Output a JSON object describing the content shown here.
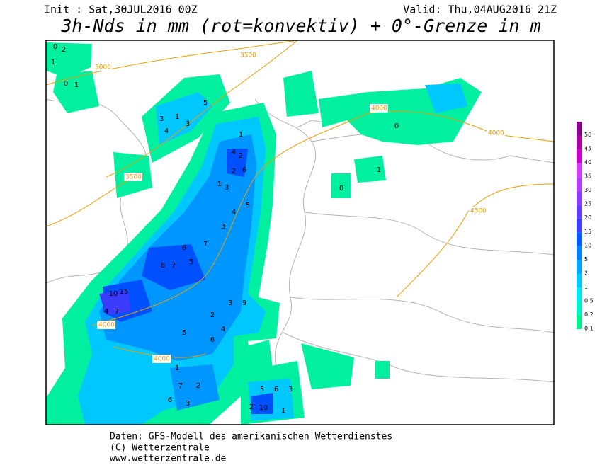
{
  "header": {
    "init": "Init : Sat,30JUL2016 00Z",
    "valid": "Valid: Thu,04AUG2016 21Z",
    "title": "3h-Nds in mm (rot=konvektiv) + 0°-Grenze in m"
  },
  "legend": {
    "levels": [
      {
        "label": "0.1",
        "color": "#00f08c"
      },
      {
        "label": "0.2",
        "color": "#00f0c8"
      },
      {
        "label": "0.5",
        "color": "#00e6f0"
      },
      {
        "label": "1",
        "color": "#00c8ff"
      },
      {
        "label": "2",
        "color": "#00a5ff"
      },
      {
        "label": "5",
        "color": "#0082ff"
      },
      {
        "label": "10",
        "color": "#005aff"
      },
      {
        "label": "15",
        "color": "#3c3cff"
      },
      {
        "label": "20",
        "color": "#643cff"
      },
      {
        "label": "25",
        "color": "#8c3cff"
      },
      {
        "label": "30",
        "color": "#b43cf5"
      },
      {
        "label": "35",
        "color": "#d23cf0"
      },
      {
        "label": "40",
        "color": "#c800c8"
      },
      {
        "label": "45",
        "color": "#aa00aa"
      },
      {
        "label": "50",
        "color": "#8c008c"
      }
    ]
  },
  "map": {
    "isolines": [
      "3500",
      "3000",
      "3500",
      "4000",
      "4000",
      "4000",
      "4500",
      "4000"
    ],
    "values": [
      "0",
      "1",
      "2",
      "0",
      "1",
      "3",
      "4",
      "1",
      "5",
      "3",
      "1",
      "4",
      "2",
      "6",
      "2",
      "1",
      "3",
      "5",
      "4",
      "3",
      "7",
      "6",
      "8",
      "7",
      "5",
      "15",
      "10",
      "4",
      "7",
      "9",
      "3",
      "2",
      "4",
      "6",
      "5",
      "2",
      "7",
      "6",
      "3",
      "5",
      "10",
      "1",
      "3",
      "6",
      "2",
      "0",
      "1",
      "0",
      "1"
    ]
  },
  "footer": [
    "Daten: GFS-Modell des amerikanischen Wetterdienstes",
    "(C) Wetterzentrale",
    "www.wetterzentrale.de"
  ]
}
